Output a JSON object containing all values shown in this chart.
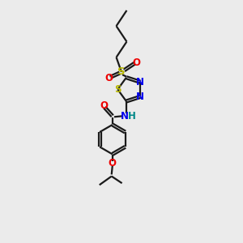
{
  "bg_color": "#ebebeb",
  "bond_color": "#1a1a1a",
  "S_color": "#b8b800",
  "N_color": "#0000ee",
  "O_color": "#ee0000",
  "NH_color": "#008888",
  "line_width": 1.6,
  "figsize": [
    3.0,
    3.0
  ],
  "dpi": 100,
  "xlim": [
    0,
    10
  ],
  "ylim": [
    0,
    14
  ],
  "font_size": 8.5
}
